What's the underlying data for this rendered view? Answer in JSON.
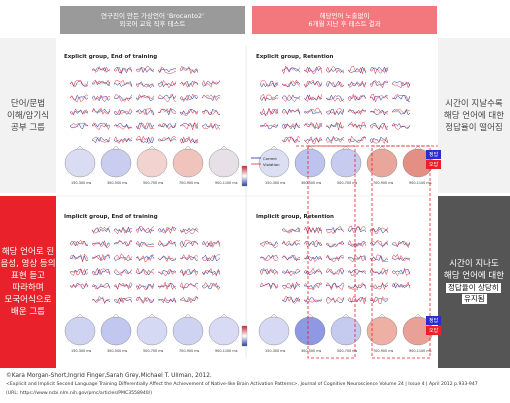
{
  "header": {
    "left_label_line1": "연구진이 만든 가상언어 'Brocanto2'",
    "left_label_line2": "외국어 교육 직후 테스트",
    "right_label_line1": "해당언어 노출없이",
    "right_label_line2": "6개월 지난 후 테스트 결과"
  },
  "rows": [
    {
      "side_left": [
        "단어/문법",
        "이해/암기식",
        "공부 그룹"
      ],
      "panel_left_title": "Explicit group, End of training",
      "panel_right_title": "Explicit group, Retention",
      "side_right": [
        "시간이 지날수록",
        "해당 언어에 대한",
        "정답율이 떨어짐"
      ],
      "legend": [
        "정답",
        "오답"
      ]
    },
    {
      "side_left": [
        "해당 언어로 된",
        "음성, 영상 등의",
        "표현 듣고",
        "따라하며",
        "모국어식으로",
        "배운 그룹"
      ],
      "panel_left_title": "Implicit group, End of training",
      "panel_right_title": "Implicit group, Retention",
      "side_right_lines": [
        "시간이 지나도",
        "해당 언어에 대한"
      ],
      "side_right_highlight": [
        "정답율이 상당히",
        "유지됨"
      ],
      "legend": [
        "정답",
        "오답"
      ]
    }
  ],
  "time_labels": [
    "150-300 ms",
    "300-500 ms",
    "500-700 ms",
    "700-900 ms",
    "900-1100 ms"
  ],
  "legend_mid": [
    "Correct",
    "Violation"
  ],
  "colors": {
    "header_left": "#9a9a9a",
    "header_right": "#f2787d",
    "side_red": "#e8212b",
    "side_gray": "#555555",
    "side_light": "#f2f2f2",
    "legend_blue": "#2b2bd0",
    "legend_red": "#e8212b",
    "trace_blue": "#1a2f9c",
    "trace_red": "#e0303a"
  },
  "citation": {
    "line1": "©Kara Morgan-Short,Ingrid Finger,Sarah Grey,Michael T. Ullman, 2012.",
    "line2": "<Explicit and Implicit Second Language Training Differentially Affect the Achievement of Native-like Brain Activation Patterns>, Journal of Cognitive Neuroscience Volume 24 | Issue 4 | April 2012 p.933-947",
    "line3": "(URL: https://www.ncbi.nlm.nih.gov/pmc/articles/PMC3558940/)"
  }
}
